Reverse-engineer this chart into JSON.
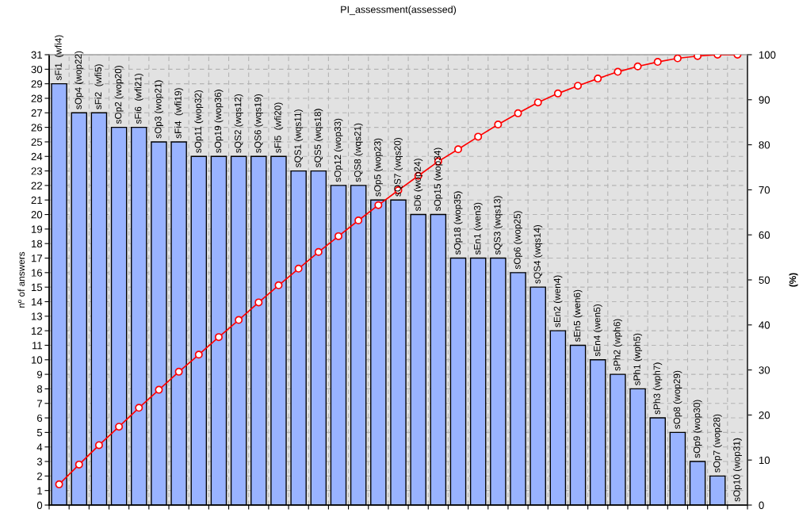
{
  "chart_data": {
    "type": "bar",
    "title": "PI_assessment(assessed)",
    "ylabel": "nº of answers",
    "y2label": "(%)",
    "categories": [
      "sFi1  (wfi4)",
      "sOp4 (wop22)",
      "sFi2  (wfi5)",
      "sOp2 (wop20)",
      "sFi6  (wfi21)",
      "sOp3 (wop21)",
      "sFi4  (wfi19)",
      "sOp11 (wop32)",
      "sOp19 (wop36)",
      "sQS2 (wqs12)",
      "sQS6 (wqs19)",
      "sFi5  (wfi20)",
      "sQS1 (wqs11)",
      "sQS5 (wqs18)",
      "sOp12 (wop33)",
      "sQS8 (wqs21)",
      "sOp5 (wop23)",
      "sQS7 (wqs20)",
      "sD6 (wop24)",
      "sOp15 (wop34)",
      "sOp18 (wop35)",
      "sEn1 (wen3)",
      "sQS3 (wqs13)",
      "sOp6 (wop25)",
      "sQS4 (wqs14)",
      "sEn2 (wen4)",
      "sEn5 (wen6)",
      "sEn4 (wen5)",
      "sPh2 (wph6)",
      "sPh1 (wph5)",
      "sPh3 (wph7)",
      "sOp8 (wop29)",
      "sOp9 (wop30)",
      "sOp7 (wop28)",
      "sOp10 (wop31)"
    ],
    "series": [
      {
        "color": "#99b3ff",
        "values": [
          29,
          27,
          27,
          26,
          26,
          25,
          25,
          24,
          24,
          24,
          24,
          24,
          23,
          23,
          22,
          22,
          21,
          21,
          20,
          20,
          17,
          17,
          17,
          16,
          15,
          12,
          11,
          10,
          9,
          8,
          6,
          5,
          3,
          2,
          0
        ]
      },
      {
        "type": "line",
        "axis": "y2",
        "color": "#ff0000",
        "values": [
          4.6,
          9.0,
          13.3,
          17.4,
          21.6,
          25.6,
          29.6,
          33.4,
          37.3,
          41.1,
          45.0,
          48.8,
          52.5,
          56.2,
          59.7,
          63.2,
          66.6,
          69.9,
          73.1,
          76.3,
          79.0,
          81.8,
          84.5,
          87.0,
          89.4,
          91.4,
          93.1,
          94.7,
          96.2,
          97.4,
          98.4,
          99.2,
          99.7,
          100,
          100
        ]
      }
    ],
    "ylim": [
      0,
      31
    ],
    "yticks": [
      0,
      1,
      2,
      3,
      4,
      5,
      6,
      7,
      8,
      9,
      10,
      11,
      12,
      13,
      14,
      15,
      16,
      17,
      18,
      19,
      20,
      21,
      22,
      23,
      24,
      25,
      26,
      27,
      28,
      29,
      30,
      31
    ],
    "y2lim": [
      0,
      100
    ],
    "y2ticks": [
      0,
      10,
      20,
      30,
      40,
      50,
      60,
      70,
      80,
      90,
      100
    ],
    "grid": true,
    "marker": "circle",
    "line_style": "solid"
  }
}
